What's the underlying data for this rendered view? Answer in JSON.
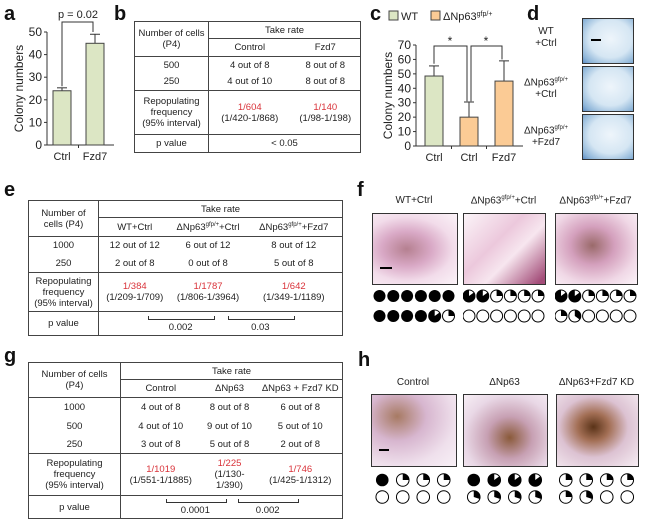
{
  "panels": {
    "a": "a",
    "b": "b",
    "c": "c",
    "d": "d",
    "e": "e",
    "f": "f",
    "g": "g",
    "h": "h"
  },
  "colors": {
    "wt_bar": "#dce6c4",
    "mutant_bar": "#fbcb95",
    "red_text": "#d9333a"
  },
  "chart_data": [
    {
      "type": "bar",
      "panel": "a",
      "categories": [
        "Ctrl",
        "Fzd7"
      ],
      "values": [
        24,
        45
      ],
      "errors": [
        1.3,
        4
      ],
      "ylabel": "Colony numbers",
      "ylim": [
        0,
        50
      ],
      "yticks": [
        0,
        10,
        20,
        30,
        40,
        50
      ],
      "annotation": "p = 0.02",
      "bar_colors": [
        "#dce6c4",
        "#dce6c4"
      ]
    },
    {
      "type": "bar",
      "panel": "c",
      "categories": [
        "Ctrl",
        "Ctrl",
        "Fzd7"
      ],
      "values": [
        48.5,
        20,
        45
      ],
      "errors": [
        7,
        10.5,
        14
      ],
      "ylabel": "Colony numbers",
      "ylim": [
        0,
        70
      ],
      "yticks": [
        0,
        10,
        20,
        30,
        40,
        50,
        60,
        70
      ],
      "legend": [
        {
          "name": "WT",
          "color": "#dce6c4"
        },
        {
          "name": "ΔNp63",
          "sup": "gfp/+",
          "color": "#fbcb95"
        }
      ],
      "legend_position": "top",
      "series_of_bar": [
        0,
        1,
        1
      ],
      "annotations": [
        "*",
        "*"
      ]
    }
  ],
  "table_b": {
    "corner": [
      "Number of cells",
      "(P4)"
    ],
    "span": "Take rate",
    "cols": [
      {
        "base": "Control"
      },
      {
        "base": "Fzd7"
      }
    ],
    "rows": [
      {
        "label": "500",
        "values": [
          "4 out of 8",
          "8 out of 8"
        ]
      },
      {
        "label": "250",
        "values": [
          "4 out of 10",
          "8 out of 8"
        ]
      }
    ],
    "repop": {
      "label": [
        "Repopulating",
        "frequency",
        "(95% interval)"
      ],
      "values": [
        {
          "freq": "1/604",
          "ci": "(1/420-1/868)"
        },
        {
          "freq": "1/140",
          "ci": "(1/98-1/198)"
        }
      ]
    },
    "p": {
      "label": "p value",
      "single": "< 0.05"
    }
  },
  "table_e": {
    "corner": [
      "Number of",
      "cells (P4)"
    ],
    "span": "Take rate",
    "cols": [
      {
        "base": "WT+Ctrl"
      },
      {
        "base": "ΔNp63",
        "sup": "gfp/+",
        "suffix": "+Ctrl"
      },
      {
        "base": "ΔNp63",
        "sup": "gfp/+",
        "suffix": "+Fzd7"
      }
    ],
    "rows": [
      {
        "label": "1000",
        "values": [
          "12 out of 12",
          "6 out of 12",
          "8 out of 12"
        ]
      },
      {
        "label": "250",
        "values": [
          "2 out of 8",
          "0 out of 8",
          "5 out of 8"
        ]
      }
    ],
    "repop": {
      "label": [
        "Repopulating",
        "frequency",
        "(95% interval)"
      ],
      "values": [
        {
          "freq": "1/384",
          "ci": "(1/209-1/709)"
        },
        {
          "freq": "1/1787",
          "ci": "(1/806-1/3964)"
        },
        {
          "freq": "1/642",
          "ci": "(1/349-1/1189)"
        }
      ]
    },
    "p": {
      "label": "p value",
      "comparisons": [
        {
          "between": [
            0,
            1
          ],
          "value": "0.002"
        },
        {
          "between": [
            1,
            2
          ],
          "value": "0.03"
        }
      ]
    }
  },
  "table_g": {
    "corner": [
      "Number of cells",
      "(P4)"
    ],
    "span": "Take rate",
    "cols": [
      {
        "base": "Control"
      },
      {
        "base": "ΔNp63"
      },
      {
        "base": "ΔNp63 + Fzd7 KD"
      }
    ],
    "rows": [
      {
        "label": "1000",
        "values": [
          "4 out of 8",
          "8 out of 8",
          "6 out of 8"
        ]
      },
      {
        "label": "500",
        "values": [
          "4 out of 10",
          "9 out of 10",
          "5 out of 10"
        ]
      },
      {
        "label": "250",
        "values": [
          "3 out of 8",
          "5 out of 8",
          "2 out of 8"
        ]
      }
    ],
    "repop": {
      "label": [
        "Repopulating",
        "frequency",
        "(95% interval)"
      ],
      "values": [
        {
          "freq": "1/1019",
          "ci": "(1/551-1/1885)"
        },
        {
          "freq": "1/225",
          "ci": "(1/130-1/390)"
        },
        {
          "freq": "1/746",
          "ci": "(1/425-1/1312)"
        }
      ]
    },
    "p": {
      "label": "p value",
      "comparisons": [
        {
          "between": [
            0,
            1
          ],
          "value": "0.0001"
        },
        {
          "between": [
            1,
            2
          ],
          "value": "0.002"
        }
      ]
    }
  },
  "panel_d": {
    "labels": [
      {
        "base": "WT",
        "line2": "+Ctrl"
      },
      {
        "base": "ΔNp63",
        "sup": "gfp/+",
        "line2": "+Ctrl"
      },
      {
        "base": "ΔNp63",
        "sup": "gfp/+",
        "line2": "+Fzd7"
      }
    ]
  },
  "panel_f": {
    "groups": [
      {
        "title": {
          "base": "WT+Ctrl"
        },
        "pies": [
          [
            1,
            1,
            1,
            1,
            1,
            1
          ],
          [
            1,
            1,
            1,
            1,
            0.85,
            0.25
          ]
        ]
      },
      {
        "title": {
          "base": "ΔNp63",
          "sup": "gfp/+",
          "suffix": "+Ctrl"
        },
        "pies": [
          [
            0.85,
            0.85,
            0.25,
            0.25,
            0.25,
            0.25
          ],
          [
            0,
            0,
            0,
            0,
            0,
            0
          ]
        ]
      },
      {
        "title": {
          "base": "ΔNp63",
          "sup": "gfp/+",
          "suffix": "+Fzd7"
        },
        "pies": [
          [
            0.85,
            0.85,
            0.25,
            0.25,
            0.25,
            0.25
          ],
          [
            0.25,
            0.35,
            0,
            0,
            0,
            0
          ]
        ]
      }
    ]
  },
  "panel_h": {
    "groups": [
      {
        "title": {
          "base": "Control"
        },
        "pies": [
          [
            1,
            0.25,
            0.25,
            0.25
          ],
          [
            0,
            0,
            0,
            0
          ]
        ]
      },
      {
        "title": {
          "base": "ΔNp63"
        },
        "pies": [
          [
            1,
            0.85,
            0.85,
            0.85
          ],
          [
            0.3,
            0.3,
            0.3,
            0.3
          ]
        ]
      },
      {
        "title": {
          "base": "ΔNp63+Fzd7 KD"
        },
        "pies": [
          [
            0.25,
            0.25,
            0.25,
            0.25
          ],
          [
            0.25,
            0.3,
            0,
            0
          ]
        ]
      }
    ]
  }
}
